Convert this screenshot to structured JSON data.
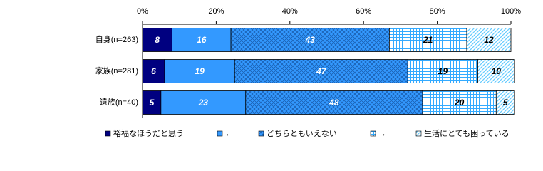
{
  "chart_data": {
    "type": "stacked-bar-horizontal",
    "categories": [
      "自身(n=263)",
      "家族(n=281)",
      "遺族(n=40)"
    ],
    "series": [
      {
        "name": "裕福なほうだと思う",
        "color": "#000080",
        "pattern": "solid",
        "label_color": "#ffffff",
        "values": [
          8,
          6,
          5
        ]
      },
      {
        "name": "←",
        "color": "#3399ff",
        "pattern": "solid",
        "label_color": "#ffffff",
        "values": [
          16,
          19,
          23
        ]
      },
      {
        "name": "どちらともいえない",
        "color": "#3399ff",
        "pattern": "cross",
        "label_color": "#ffffff",
        "values": [
          43,
          47,
          48
        ]
      },
      {
        "name": "→",
        "color": "#66ccff",
        "pattern": "grid",
        "label_color": "#000000",
        "values": [
          21,
          19,
          20
        ]
      },
      {
        "name": "生活にとても困っている",
        "color": "#66ccff",
        "pattern": "diagonal",
        "label_color": "#000000",
        "values": [
          12,
          10,
          5
        ]
      }
    ],
    "xlim": [
      0,
      100
    ],
    "xticks": [
      {
        "value": 0,
        "label": "0%"
      },
      {
        "value": 20,
        "label": "20%"
      },
      {
        "value": 40,
        "label": "40%"
      },
      {
        "value": 60,
        "label": "60%"
      },
      {
        "value": 80,
        "label": "80%"
      },
      {
        "value": 100,
        "label": "100%"
      }
    ]
  }
}
